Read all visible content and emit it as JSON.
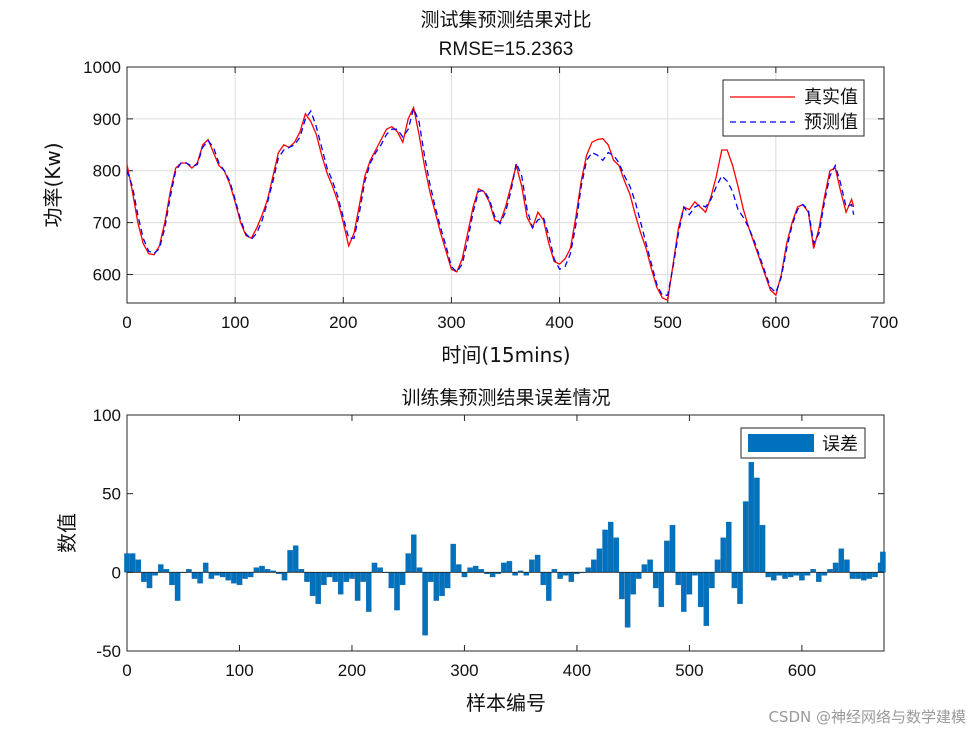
{
  "chart_data": [
    {
      "type": "line",
      "title": "测试集预测结果对比",
      "subtitle": "RMSE=15.2363",
      "xlabel": "时间(15mins)",
      "ylabel": "功率(Kw)",
      "xlim": [
        0,
        700
      ],
      "ylim": [
        545,
        1000
      ],
      "xticks": [
        0,
        100,
        200,
        300,
        400,
        500,
        600,
        700
      ],
      "yticks": [
        600,
        700,
        800,
        900,
        1000
      ],
      "grid": true,
      "legend": "top-right",
      "series": [
        {
          "name": "真实值",
          "color": "#ff0000",
          "style": "solid",
          "x": [
            0,
            5,
            10,
            15,
            20,
            25,
            30,
            35,
            40,
            45,
            50,
            55,
            60,
            65,
            70,
            75,
            80,
            85,
            90,
            95,
            100,
            105,
            110,
            115,
            120,
            125,
            130,
            135,
            140,
            145,
            150,
            155,
            160,
            165,
            170,
            175,
            180,
            185,
            190,
            195,
            200,
            205,
            210,
            215,
            220,
            225,
            230,
            235,
            240,
            245,
            250,
            255,
            260,
            265,
            270,
            275,
            280,
            285,
            290,
            295,
            300,
            305,
            310,
            315,
            320,
            325,
            330,
            335,
            340,
            345,
            350,
            355,
            360,
            365,
            370,
            375,
            380,
            385,
            390,
            395,
            400,
            405,
            410,
            415,
            420,
            425,
            430,
            435,
            440,
            445,
            450,
            455,
            460,
            465,
            470,
            475,
            480,
            485,
            490,
            495,
            500,
            505,
            510,
            515,
            520,
            525,
            530,
            535,
            540,
            545,
            550,
            555,
            560,
            565,
            570,
            575,
            580,
            585,
            590,
            595,
            600,
            605,
            610,
            615,
            620,
            625,
            630,
            635,
            640,
            645,
            650,
            655,
            660,
            665,
            670,
            672
          ],
          "y": [
            812,
            760,
            700,
            660,
            640,
            638,
            655,
            700,
            760,
            805,
            815,
            815,
            805,
            815,
            850,
            860,
            835,
            810,
            800,
            775,
            740,
            700,
            675,
            670,
            690,
            715,
            745,
            790,
            835,
            850,
            845,
            855,
            875,
            910,
            895,
            870,
            830,
            795,
            770,
            740,
            700,
            655,
            680,
            735,
            790,
            820,
            840,
            860,
            880,
            885,
            875,
            855,
            900,
            922,
            870,
            810,
            760,
            720,
            680,
            645,
            610,
            605,
            630,
            680,
            730,
            765,
            760,
            740,
            705,
            700,
            730,
            770,
            810,
            770,
            710,
            690,
            720,
            705,
            660,
            625,
            620,
            630,
            650,
            710,
            780,
            830,
            855,
            860,
            862,
            850,
            820,
            810,
            780,
            755,
            715,
            680,
            650,
            610,
            575,
            555,
            550,
            620,
            690,
            730,
            725,
            740,
            730,
            720,
            750,
            790,
            840,
            840,
            810,
            770,
            725,
            690,
            660,
            630,
            600,
            570,
            560,
            600,
            660,
            700,
            730,
            735,
            720,
            650,
            690,
            750,
            800,
            805,
            760,
            720,
            745,
            730
          ]
        },
        {
          "name": "预测值",
          "color": "#0000ff",
          "style": "dashed",
          "x": [
            0,
            5,
            10,
            15,
            20,
            25,
            30,
            35,
            40,
            45,
            50,
            55,
            60,
            65,
            70,
            75,
            80,
            85,
            90,
            95,
            100,
            105,
            110,
            115,
            120,
            125,
            130,
            135,
            140,
            145,
            150,
            155,
            160,
            165,
            170,
            175,
            180,
            185,
            190,
            195,
            200,
            205,
            210,
            215,
            220,
            225,
            230,
            235,
            240,
            245,
            250,
            255,
            260,
            265,
            270,
            275,
            280,
            285,
            290,
            295,
            300,
            305,
            310,
            315,
            320,
            325,
            330,
            335,
            340,
            345,
            350,
            355,
            360,
            365,
            370,
            375,
            380,
            385,
            390,
            395,
            400,
            405,
            410,
            415,
            420,
            425,
            430,
            435,
            440,
            445,
            450,
            455,
            460,
            465,
            470,
            475,
            480,
            485,
            490,
            495,
            500,
            505,
            510,
            515,
            520,
            525,
            530,
            535,
            540,
            545,
            550,
            555,
            560,
            565,
            570,
            575,
            580,
            585,
            590,
            595,
            600,
            605,
            610,
            615,
            620,
            625,
            630,
            635,
            640,
            645,
            650,
            655,
            660,
            665,
            670,
            672
          ],
          "y": [
            800,
            770,
            715,
            670,
            645,
            640,
            650,
            690,
            750,
            800,
            815,
            815,
            808,
            812,
            845,
            858,
            845,
            815,
            800,
            780,
            745,
            705,
            678,
            668,
            680,
            705,
            740,
            780,
            825,
            840,
            845,
            850,
            865,
            900,
            915,
            885,
            845,
            805,
            780,
            750,
            710,
            670,
            670,
            720,
            780,
            815,
            835,
            850,
            870,
            880,
            880,
            865,
            880,
            920,
            895,
            830,
            775,
            730,
            690,
            655,
            615,
            605,
            620,
            665,
            720,
            760,
            762,
            745,
            712,
            698,
            720,
            760,
            815,
            790,
            725,
            690,
            705,
            710,
            675,
            630,
            610,
            615,
            640,
            695,
            770,
            820,
            835,
            830,
            820,
            835,
            830,
            815,
            790,
            770,
            740,
            700,
            660,
            620,
            580,
            560,
            560,
            615,
            680,
            730,
            715,
            730,
            735,
            730,
            745,
            770,
            790,
            780,
            760,
            725,
            710,
            690,
            665,
            635,
            605,
            575,
            565,
            595,
            650,
            695,
            725,
            735,
            725,
            660,
            680,
            740,
            790,
            810,
            775,
            730,
            735,
            715
          ]
        }
      ]
    },
    {
      "type": "bar",
      "title": "训练集预测结果误差情况",
      "xlabel": "样本编号",
      "ylabel": "数值",
      "xlim": [
        0,
        673
      ],
      "ylim": [
        -50,
        100
      ],
      "xticks": [
        0,
        100,
        200,
        300,
        400,
        500,
        600
      ],
      "yticks": [
        -50,
        0,
        50,
        100
      ],
      "grid": false,
      "legend": "top-right",
      "series": [
        {
          "name": "误差",
          "color": "#0072bd",
          "x": [
            0,
            5,
            10,
            15,
            20,
            25,
            30,
            35,
            40,
            45,
            50,
            55,
            60,
            65,
            70,
            75,
            80,
            85,
            90,
            95,
            100,
            105,
            110,
            115,
            120,
            125,
            130,
            135,
            140,
            145,
            150,
            155,
            160,
            165,
            170,
            175,
            180,
            185,
            190,
            195,
            200,
            205,
            210,
            215,
            220,
            225,
            230,
            235,
            240,
            245,
            250,
            255,
            260,
            265,
            270,
            275,
            280,
            285,
            290,
            295,
            300,
            305,
            310,
            315,
            320,
            325,
            330,
            335,
            340,
            345,
            350,
            355,
            360,
            365,
            370,
            375,
            380,
            385,
            390,
            395,
            400,
            405,
            410,
            415,
            420,
            425,
            430,
            435,
            440,
            445,
            450,
            455,
            460,
            465,
            470,
            475,
            480,
            485,
            490,
            495,
            500,
            505,
            510,
            515,
            520,
            525,
            530,
            535,
            540,
            545,
            550,
            555,
            560,
            565,
            570,
            575,
            580,
            585,
            590,
            595,
            600,
            605,
            610,
            615,
            620,
            625,
            630,
            635,
            640,
            645,
            650,
            655,
            660,
            665,
            670,
            672
          ],
          "y": [
            12,
            12,
            8,
            -6,
            -10,
            -2,
            5,
            2,
            -8,
            -18,
            0,
            2,
            -4,
            -7,
            6,
            -4,
            -2,
            -3,
            -5,
            -7,
            -8,
            -4,
            -3,
            3,
            4,
            2,
            1,
            -1,
            -5,
            14,
            17,
            2,
            -6,
            -15,
            -20,
            -8,
            -3,
            -6,
            -14,
            -6,
            -4,
            -18,
            -6,
            -25,
            6,
            3,
            0,
            -10,
            -24,
            -8,
            12,
            24,
            3,
            -40,
            -6,
            -18,
            -15,
            -10,
            18,
            5,
            -3,
            3,
            4,
            2,
            -1,
            -3,
            -1,
            6,
            7,
            -2,
            1,
            -2,
            8,
            11,
            -8,
            -18,
            2,
            -4,
            -2,
            -6,
            -1,
            0,
            3,
            8,
            15,
            27,
            32,
            22,
            -17,
            -35,
            -14,
            -4,
            5,
            8,
            -10,
            -22,
            20,
            30,
            -8,
            -25,
            -14,
            -2,
            -22,
            -34,
            -10,
            8,
            22,
            32,
            -10,
            -20,
            45,
            70,
            60,
            30,
            -3,
            -5,
            -2,
            -4,
            -3,
            -2,
            -5,
            -2,
            2,
            -6,
            -2,
            2,
            6,
            15,
            8,
            -4,
            -4,
            -5,
            -4,
            -3,
            6,
            13
          ]
        }
      ]
    }
  ],
  "watermark": "CSDN @神经网络与数学建模"
}
